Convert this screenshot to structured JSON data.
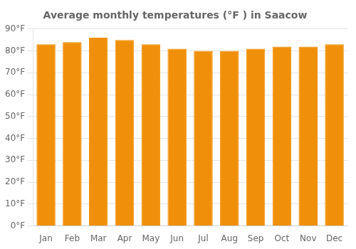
{
  "chart_data": {
    "type": "bar",
    "title": "Average monthly temperatures (°F ) in Saacow",
    "categories": [
      "Jan",
      "Feb",
      "Mar",
      "Apr",
      "May",
      "Jun",
      "Jul",
      "Aug",
      "Sep",
      "Oct",
      "Nov",
      "Dec"
    ],
    "values": [
      83,
      84,
      86,
      85,
      83,
      81,
      80,
      80,
      81,
      82,
      82,
      83
    ],
    "color": "#F0900A",
    "ylim": [
      0,
      90
    ],
    "yticks": [
      {
        "value": 0,
        "label": "0°F"
      },
      {
        "value": 10,
        "label": "10°F"
      },
      {
        "value": 20,
        "label": "20°F"
      },
      {
        "value": 30,
        "label": "30°F"
      },
      {
        "value": 40,
        "label": "40°F"
      },
      {
        "value": 50,
        "label": "50°F"
      },
      {
        "value": 60,
        "label": "60°F"
      },
      {
        "value": 70,
        "label": "70°F"
      },
      {
        "value": 80,
        "label": "80°F"
      },
      {
        "value": 90,
        "label": "90°F"
      }
    ],
    "grid": true
  }
}
